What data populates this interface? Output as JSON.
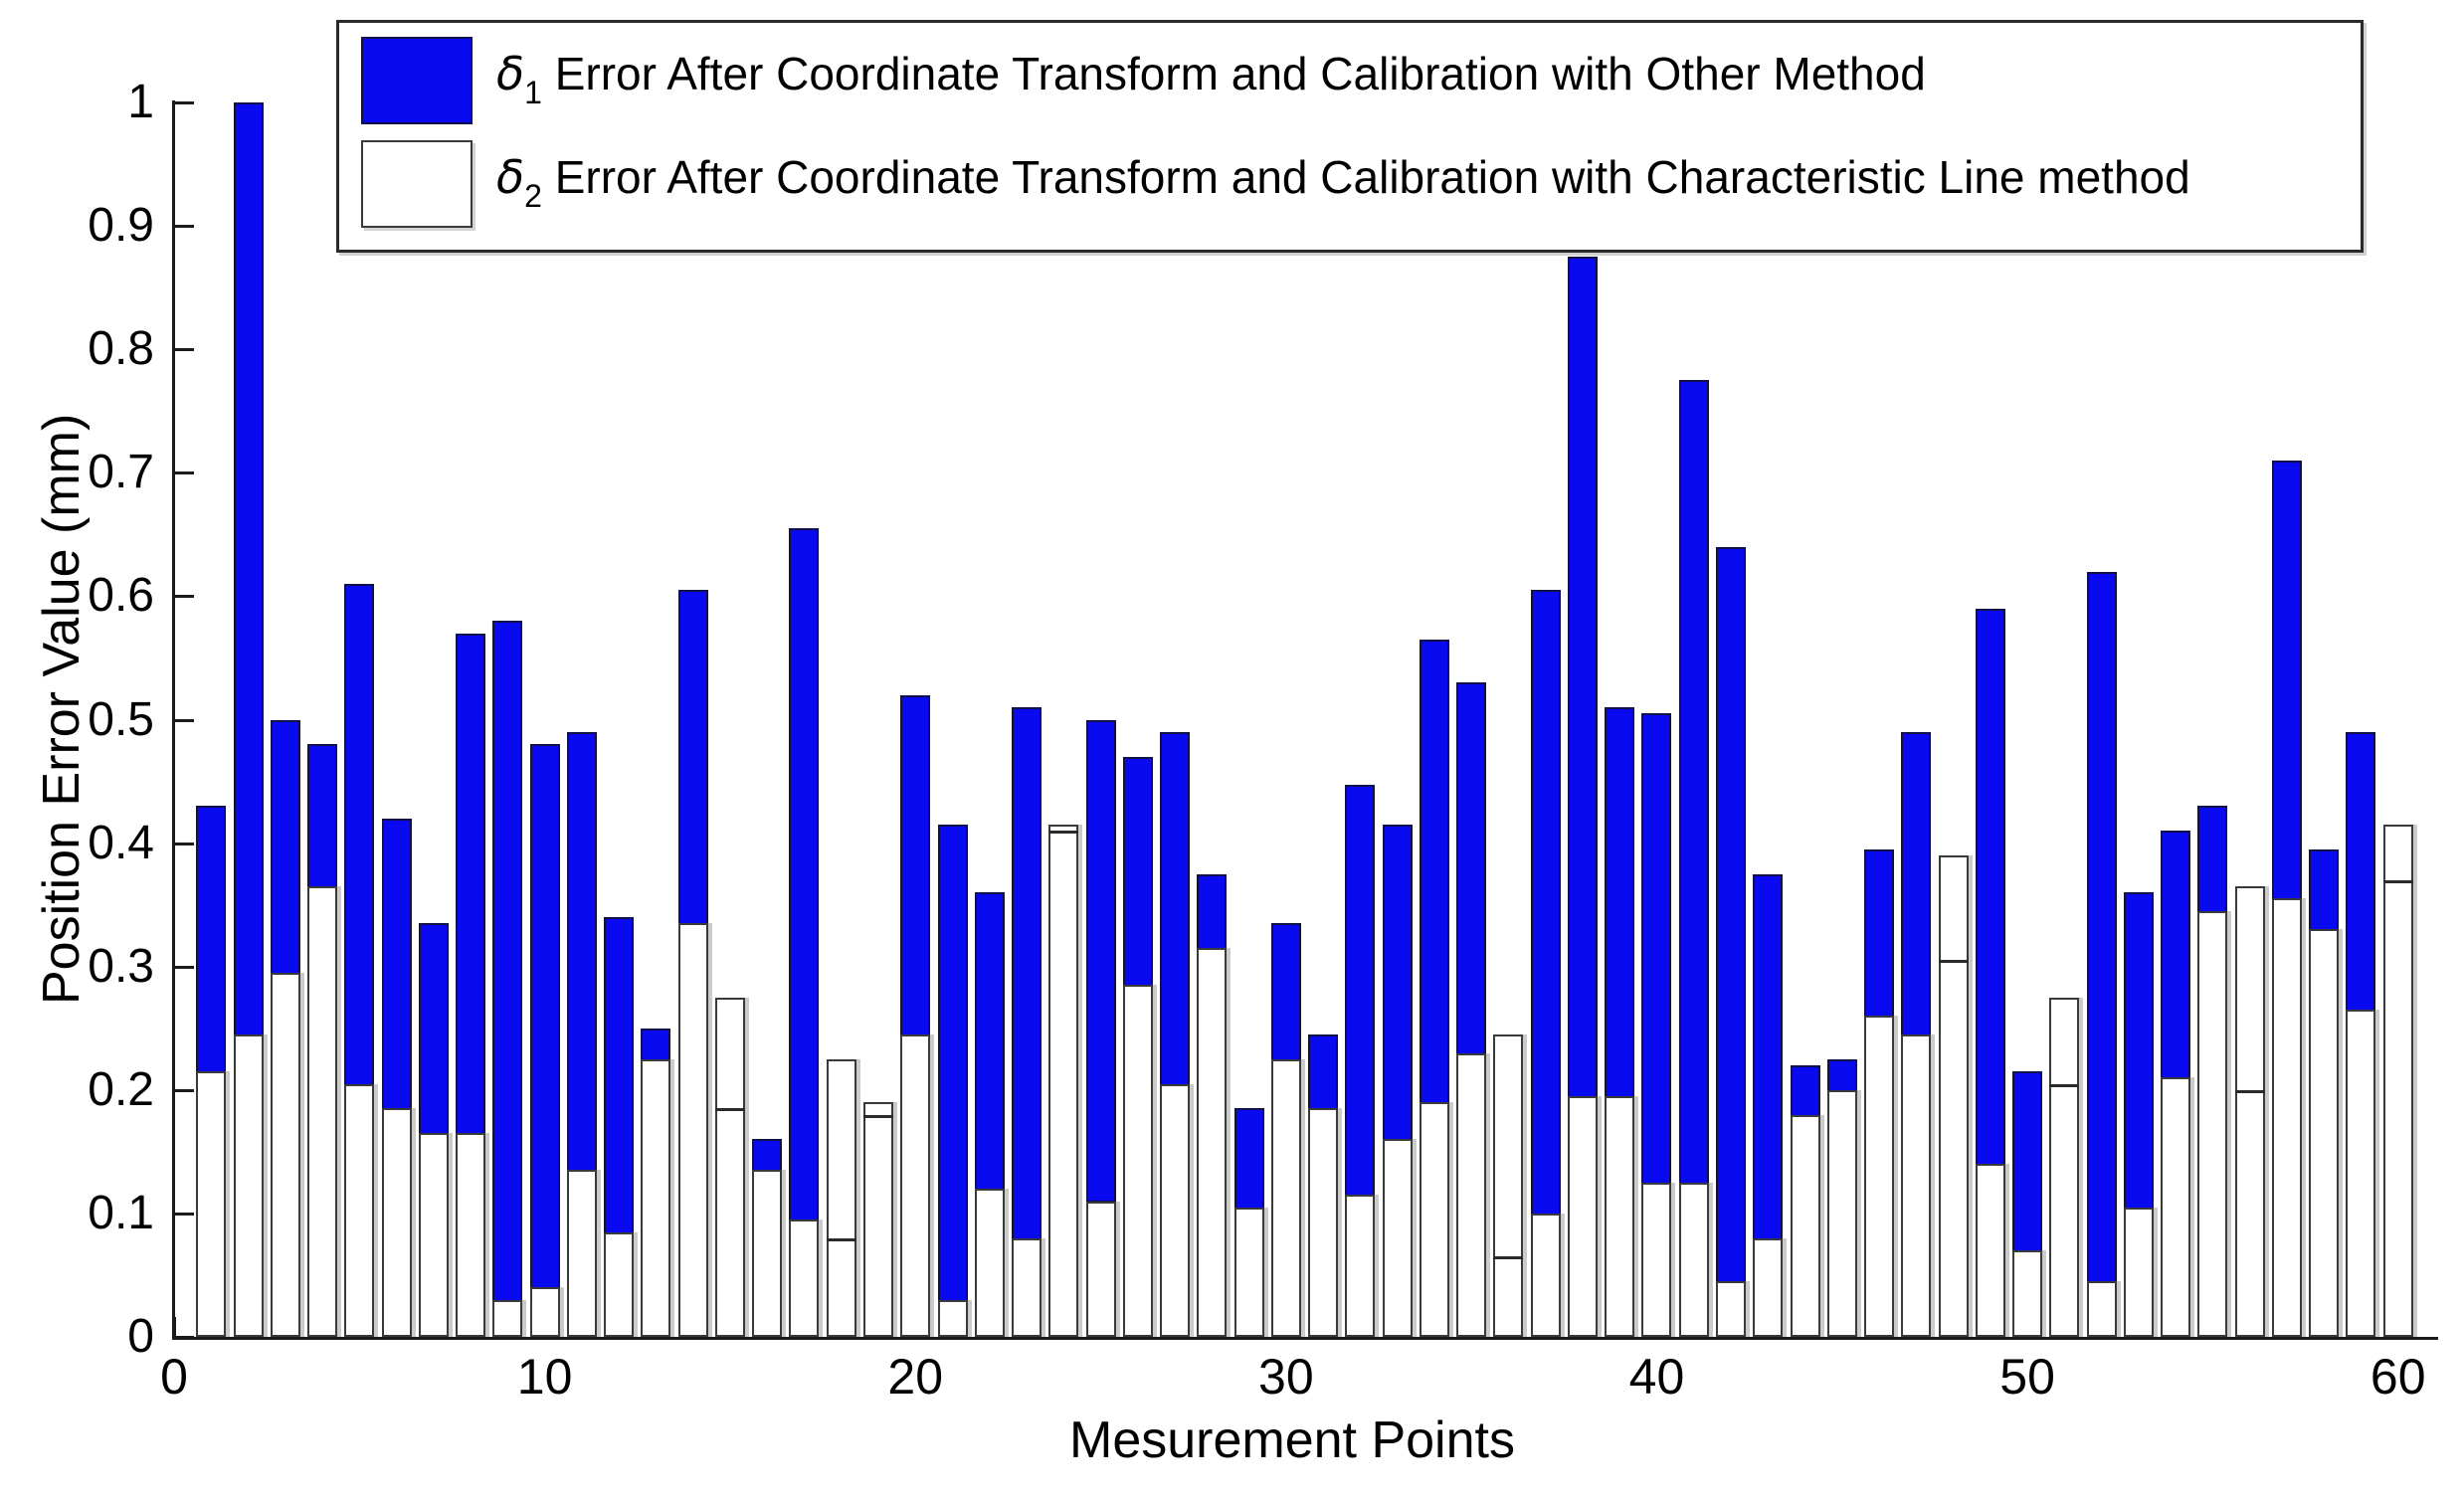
{
  "figure": {
    "background": "#ffffff",
    "blue_color": "#0a0af0",
    "bar_edge_dark": "#10104a",
    "bar_edge_gray": "#3a3a3a"
  },
  "y_axis": {
    "label": "Position Error Value (mm)",
    "ticks": [
      "0",
      "0.1",
      "0.2",
      "0.3",
      "0.4",
      "0.5",
      "0.6",
      "0.7",
      "0.8",
      "0.9",
      "1"
    ],
    "tick_values": [
      0,
      0.1,
      0.2,
      0.3,
      0.4,
      0.5,
      0.6,
      0.7,
      0.8,
      0.9,
      1
    ],
    "range": [
      0,
      1
    ]
  },
  "x_axis": {
    "label": "Mesurement Points",
    "ticks": [
      "0",
      "10",
      "20",
      "30",
      "40",
      "50",
      "60"
    ],
    "tick_values": [
      0,
      10,
      20,
      30,
      40,
      50,
      60
    ],
    "range": [
      0,
      61
    ]
  },
  "legend": {
    "entries": [
      {
        "symbol": "δ",
        "subscript": "1",
        "text": " Error After Coordinate Transform and Calibration with Other Method",
        "swatch": "blue"
      },
      {
        "symbol": "δ",
        "subscript": "2",
        "text": " Error After Coordinate Transform and Calibration with Characteristic Line method",
        "swatch": "white"
      }
    ]
  },
  "chart_data": {
    "type": "bar",
    "style": "overlaid",
    "title": "",
    "xlabel": "Mesurement Points",
    "ylabel": "Position Error Value (mm)",
    "xlim": [
      0,
      61
    ],
    "ylim": [
      0,
      1
    ],
    "grid": false,
    "legend_position": "top",
    "categories": [
      1,
      2,
      3,
      4,
      5,
      6,
      7,
      8,
      9,
      10,
      11,
      12,
      13,
      14,
      15,
      16,
      17,
      18,
      19,
      20,
      21,
      22,
      23,
      24,
      25,
      26,
      27,
      28,
      29,
      30,
      31,
      32,
      33,
      34,
      35,
      36,
      37,
      38,
      39,
      40,
      41,
      42,
      43,
      44,
      45,
      46,
      47,
      48,
      49,
      50,
      51,
      52,
      53,
      54,
      55,
      56,
      57,
      58,
      59,
      60
    ],
    "series": [
      {
        "name": "delta1_other_method",
        "color": "#0a0af0",
        "values": [
          0.43,
          1.0,
          0.5,
          0.48,
          0.61,
          0.42,
          0.335,
          0.57,
          0.58,
          0.48,
          0.49,
          0.34,
          0.25,
          0.605,
          0.185,
          0.16,
          0.655,
          0.08,
          0.18,
          0.52,
          0.415,
          0.36,
          0.51,
          0.41,
          0.5,
          0.47,
          0.49,
          0.375,
          0.185,
          0.335,
          0.245,
          0.447,
          0.415,
          0.565,
          0.53,
          0.065,
          0.605,
          0.875,
          0.51,
          0.505,
          0.775,
          0.64,
          0.375,
          0.22,
          0.225,
          0.395,
          0.49,
          0.305,
          0.59,
          0.215,
          0.205,
          0.62,
          0.36,
          0.41,
          0.43,
          0.2,
          0.71,
          0.395,
          0.49,
          0.37
        ]
      },
      {
        "name": "delta2_characteristic_line_method",
        "color": "#ffffff",
        "values": [
          0.215,
          0.245,
          0.295,
          0.365,
          0.205,
          0.185,
          0.165,
          0.165,
          0.03,
          0.04,
          0.135,
          0.085,
          0.225,
          0.335,
          0.275,
          0.135,
          0.095,
          0.225,
          0.19,
          0.245,
          0.03,
          0.12,
          0.08,
          0.415,
          0.11,
          0.285,
          0.205,
          0.315,
          0.105,
          0.225,
          0.185,
          0.115,
          0.16,
          0.19,
          0.23,
          0.245,
          0.1,
          0.195,
          0.195,
          0.125,
          0.125,
          0.045,
          0.08,
          0.18,
          0.2,
          0.26,
          0.245,
          0.39,
          0.14,
          0.07,
          0.275,
          0.045,
          0.105,
          0.21,
          0.345,
          0.365,
          0.355,
          0.33,
          0.265,
          0.415
        ]
      }
    ]
  }
}
